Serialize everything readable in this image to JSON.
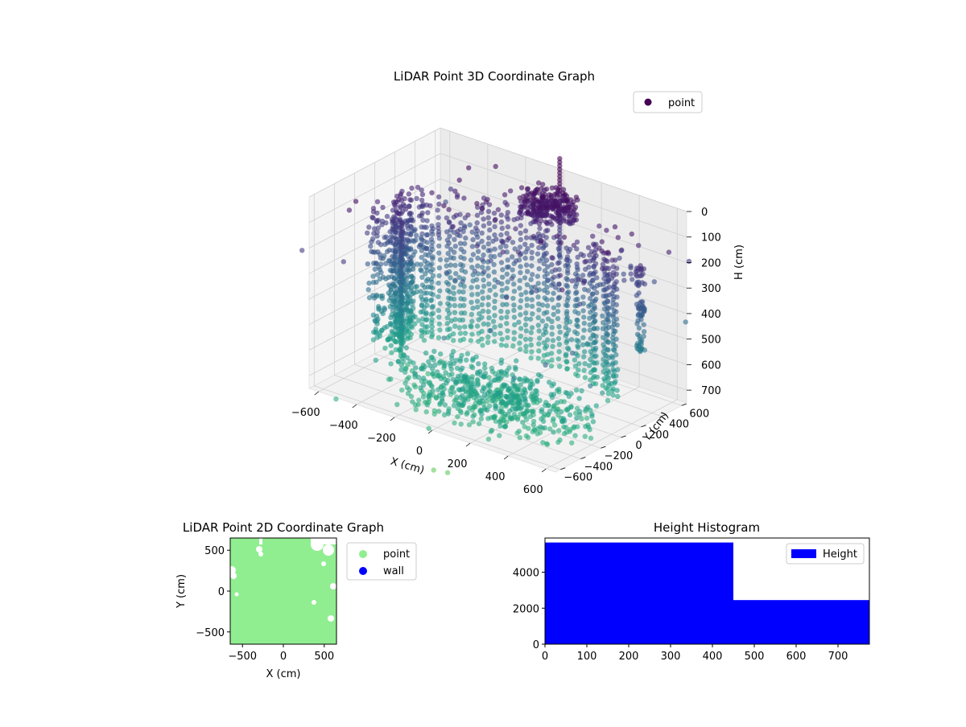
{
  "figure": {
    "chart_data": [
      {
        "type": "scatter",
        "title": "LiDAR Point 3D Coordinate Graph",
        "xlabel": "X (cm)",
        "ylabel": "Y (cm)",
        "zlabel": "H (cm)",
        "xlim": [
          -650,
          650
        ],
        "ylim": [
          -650,
          650
        ],
        "zlim": [
          0,
          750
        ],
        "z_inverted": true,
        "x_ticks": [
          -600,
          -400,
          -200,
          0,
          200,
          400,
          600
        ],
        "y_ticks": [
          -600,
          -400,
          -200,
          0,
          200,
          400,
          600
        ],
        "z_ticks": [
          0,
          100,
          200,
          300,
          400,
          500,
          600,
          700
        ],
        "colormap": "viridis, colored by height",
        "legend": {
          "position": "upper-right",
          "entries": [
            {
              "name": "point",
              "color": "#440154"
            }
          ]
        }
      },
      {
        "type": "scatter",
        "title": "LiDAR Point 2D Coordinate Graph",
        "xlabel": "X (cm)",
        "ylabel": "Y (cm)",
        "xlim": [
          -650,
          650
        ],
        "ylim": [
          -650,
          650
        ],
        "x_ticks": [
          -500,
          0,
          500
        ],
        "y_ticks": [
          -500,
          0,
          500
        ],
        "series": [
          {
            "name": "point",
            "color": "#90ee90"
          },
          {
            "name": "wall",
            "color": "#0000ff"
          }
        ],
        "legend": {
          "position": "outside-right"
        }
      },
      {
        "type": "bar",
        "title": "Height Histogram",
        "xlim": [
          0,
          775
        ],
        "ylim": [
          0,
          5900
        ],
        "x_ticks": [
          0,
          100,
          200,
          300,
          400,
          500,
          600,
          700
        ],
        "y_ticks": [
          0,
          2000,
          4000
        ],
        "bins": [
          {
            "x0": 0,
            "x1": 450,
            "count": 5650
          },
          {
            "x0": 450,
            "x1": 775,
            "count": 2450
          }
        ],
        "series": [
          {
            "name": "Height",
            "color": "#0000ff"
          }
        ],
        "legend": {
          "position": "upper-right"
        }
      }
    ]
  }
}
